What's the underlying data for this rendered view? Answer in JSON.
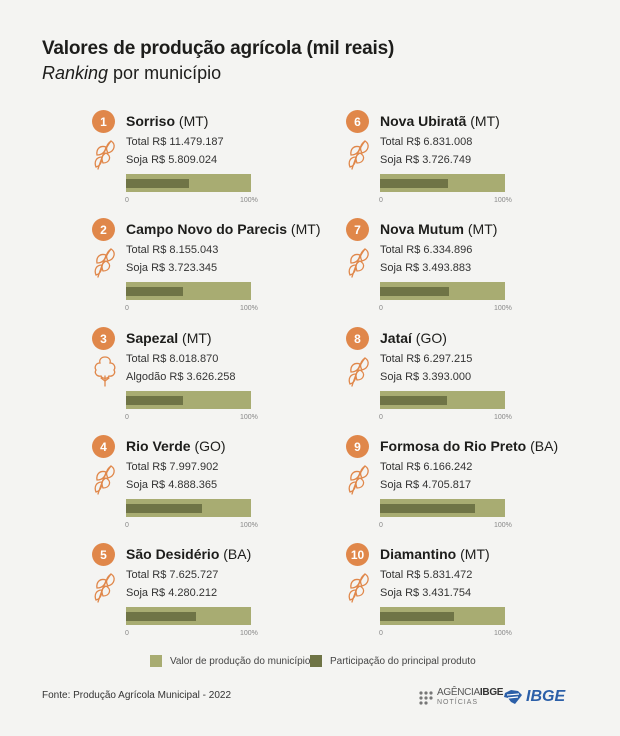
{
  "header": {
    "title": "Valores de produção agrícola (mil reais)",
    "subtitle_em": "Ranking",
    "subtitle_rest": " por município"
  },
  "chart_data": {
    "type": "bar",
    "title": "Valores de produção agrícola (mil reais)",
    "subtitle": "Ranking por município",
    "scale_min_label": "0",
    "scale_max_label": "100%",
    "legend": [
      {
        "label": "Valor de produção do município",
        "color": "#a8ac72"
      },
      {
        "label": "Participação do principal produto",
        "color": "#6f7446"
      }
    ],
    "entries": [
      {
        "rank": "1",
        "city": "Sorriso",
        "state": " (MT)",
        "total_text": "Total R$ 11.479.187",
        "product_text": "Soja R$ 5.809.024",
        "product": "Soja",
        "total": 11479187,
        "product_value": 5809024,
        "icon": "soy-icon"
      },
      {
        "rank": "2",
        "city": "Campo Novo do Parecis",
        "state": " (MT)",
        "total_text": "Total R$ 8.155.043",
        "product_text": "Soja R$ 3.723.345",
        "product": "Soja",
        "total": 8155043,
        "product_value": 3723345,
        "icon": "soy-icon"
      },
      {
        "rank": "3",
        "city": "Sapezal",
        "state": " (MT)",
        "total_text": "Total R$ 8.018.870",
        "product_text": "Algodão R$ 3.626.258",
        "product": "Algodão",
        "total": 8018870,
        "product_value": 3626258,
        "icon": "cotton-icon"
      },
      {
        "rank": "4",
        "city": "Rio Verde",
        "state": " (GO)",
        "total_text": "Total R$ 7.997.902",
        "product_text": "Soja R$ 4.888.365",
        "product": "Soja",
        "total": 7997902,
        "product_value": 4888365,
        "icon": "soy-icon"
      },
      {
        "rank": "5",
        "city": "São Desidério",
        "state": " (BA)",
        "total_text": "Total R$ 7.625.727",
        "product_text": "Soja R$ 4.280.212",
        "product": "Soja",
        "total": 7625727,
        "product_value": 4280212,
        "icon": "soy-icon"
      },
      {
        "rank": "6",
        "city": "Nova Ubiratã",
        "state": " (MT)",
        "total_text": "Total R$ 6.831.008",
        "product_text": "Soja R$ 3.726.749",
        "product": "Soja",
        "total": 6831008,
        "product_value": 3726749,
        "icon": "soy-icon"
      },
      {
        "rank": "7",
        "city": "Nova Mutum",
        "state": " (MT)",
        "total_text": "Total R$ 6.334.896",
        "product_text": "Soja R$ 3.493.883",
        "product": "Soja",
        "total": 6334896,
        "product_value": 3493883,
        "icon": "soy-icon"
      },
      {
        "rank": "8",
        "city": "Jataí",
        "state": " (GO)",
        "total_text": "Total R$ 6.297.215",
        "product_text": "Soja R$ 3.393.000",
        "product": "Soja",
        "total": 6297215,
        "product_value": 3393000,
        "icon": "soy-icon"
      },
      {
        "rank": "9",
        "city": "Formosa do Rio Preto",
        "state": " (BA)",
        "total_text": "Total R$ 6.166.242",
        "product_text": "Soja R$ 4.705.817",
        "product": "Soja",
        "total": 6166242,
        "product_value": 4705817,
        "icon": "soy-icon"
      },
      {
        "rank": "10",
        "city": "Diamantino",
        "state": " (MT)",
        "total_text": "Total R$ 5.831.472",
        "product_text": "Soja R$ 3.431.754",
        "product": "Soja",
        "total": 5831472,
        "product_value": 3431754,
        "icon": "soy-icon"
      }
    ]
  },
  "footer": {
    "source": "Fonte: Produção Agrícola Municipal - 2022",
    "agencia_a": "AGÊNCIA",
    "agencia_b": "IBGE",
    "agencia_sub": "NOTÍCIAS",
    "ibge_logo": "IBGE"
  },
  "colors": {
    "accent": "#e0874a",
    "bar_total": "#a8ac72",
    "bar_product": "#6f7446",
    "ibge_blue": "#2b5fa8"
  }
}
